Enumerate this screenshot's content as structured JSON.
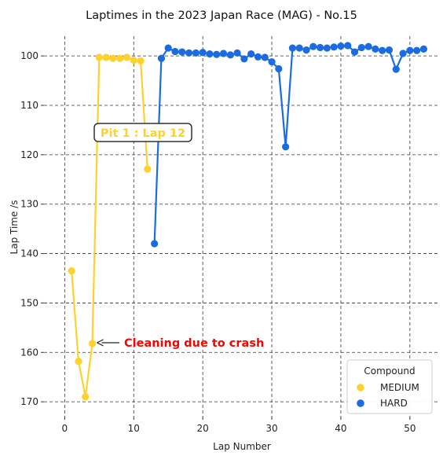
{
  "chart_data": {
    "type": "line",
    "title": "Laptimes in the 2023 Japan Race (MAG) - No.15",
    "xlabel": "Lap Number",
    "ylabel": "Lap Time /s",
    "xlim": [
      -3,
      54
    ],
    "ylim": [
      96,
      173
    ],
    "y_inverted": true,
    "x_ticks": [
      0,
      10,
      20,
      30,
      40,
      50
    ],
    "y_ticks": [
      100,
      110,
      120,
      130,
      140,
      150,
      160,
      170
    ],
    "grid": "dashed",
    "legend": {
      "title": "Compound",
      "placement": "bottom-right"
    },
    "series": [
      {
        "name": "MEDIUM",
        "color": "#FFD12E",
        "x": [
          1,
          2,
          3,
          4,
          5,
          6,
          7,
          8,
          9,
          10,
          11,
          12
        ],
        "y": [
          143.5,
          161.8,
          169.0,
          158.2,
          100.3,
          100.3,
          100.5,
          100.5,
          100.3,
          100.9,
          101.0,
          122.9
        ]
      },
      {
        "name": "HARD",
        "color": "#1A6CE0",
        "x": [
          13,
          14,
          15,
          16,
          17,
          18,
          19,
          20,
          21,
          22,
          23,
          24,
          25,
          26,
          27,
          28,
          29,
          30,
          31,
          32,
          33,
          34,
          35,
          36,
          37,
          38,
          39,
          40,
          41,
          42,
          43,
          44,
          45,
          46,
          47,
          48,
          49,
          50,
          51,
          52
        ],
        "y": [
          138.0,
          100.5,
          98.4,
          99.1,
          99.2,
          99.4,
          99.4,
          99.3,
          99.6,
          99.7,
          99.5,
          99.8,
          99.4,
          100.6,
          99.6,
          100.2,
          100.3,
          101.2,
          102.6,
          118.4,
          98.4,
          98.4,
          98.8,
          98.1,
          98.3,
          98.4,
          98.2,
          98.0,
          97.9,
          99.2,
          98.3,
          98.1,
          98.6,
          98.9,
          98.8,
          102.7,
          99.5,
          98.9,
          98.9,
          98.6
        ]
      }
    ],
    "annotations": [
      {
        "text": "Pit 1 : Lap 12",
        "color": "#FFD12E",
        "x": 12,
        "y": 115.5,
        "boxed": true
      },
      {
        "text": "Cleaning due to crash",
        "color": "#FF0000",
        "x": 4,
        "y": 158.2,
        "arrow": true
      }
    ]
  }
}
